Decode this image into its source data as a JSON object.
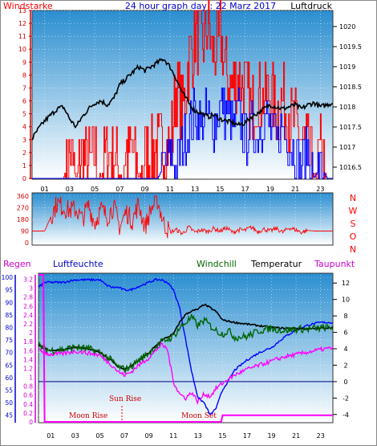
{
  "chart_data": [
    {
      "type": "line",
      "title": "24 hour graph day : 22 Marz 2017",
      "left_label": "Windstarke",
      "right_label": "Luftdruck",
      "x_ticks": [
        "01",
        "03",
        "05",
        "07",
        "09",
        "11",
        "13",
        "15",
        "17",
        "19",
        "21",
        "23"
      ],
      "y_left_ticks": [
        "0",
        "1",
        "2",
        "3",
        "4",
        "5",
        "6",
        "7",
        "8",
        "9",
        "10",
        "11",
        "12",
        "13"
      ],
      "y_left_range": [
        0,
        13
      ],
      "y_right_ticks": [
        "1016.5",
        "1017",
        "1017.5",
        "1018",
        "1018.5",
        "1019",
        "1019.5",
        "1020"
      ],
      "y_right_range": [
        1016.2,
        1020.4
      ],
      "series": [
        {
          "color": "#000000",
          "axis": "right",
          "x": [
            0,
            0.5,
            1,
            1.5,
            2,
            2.5,
            3,
            3.5,
            4,
            4.5,
            5,
            5.5,
            6,
            6.5,
            7,
            7.5,
            8,
            8.5,
            9,
            9.5,
            10,
            10.5,
            11,
            11.5,
            12,
            12.5,
            13,
            13.5,
            14,
            14.5,
            15,
            15.5,
            16,
            16.5,
            17,
            17.5,
            18,
            18.5,
            19,
            19.5,
            20,
            20.5,
            21,
            21.5,
            22,
            22.5,
            23,
            23.5,
            24
          ],
          "y": [
            1017.2,
            1017.45,
            1017.65,
            1017.8,
            1017.95,
            1018.0,
            1017.7,
            1017.5,
            1017.75,
            1017.95,
            1018.1,
            1018.15,
            1018.05,
            1018.2,
            1018.55,
            1018.7,
            1018.85,
            1019.0,
            1018.9,
            1019.0,
            1019.1,
            1019.2,
            1019.0,
            1018.7,
            1018.35,
            1018.1,
            1017.9,
            1017.85,
            1017.75,
            1017.8,
            1017.7,
            1017.65,
            1017.6,
            1017.55,
            1017.6,
            1017.75,
            1017.85,
            1017.95,
            1018.05,
            1018.0,
            1017.95,
            1018.0,
            1018.05,
            1017.95,
            1018.05,
            1018.1,
            1018.0,
            1018.05,
            1018.1
          ]
        },
        {
          "color": "#ff0000",
          "axis": "left",
          "x": [
            0,
            2.5,
            3,
            3.5,
            4,
            4.5,
            5,
            5.5,
            6,
            6.5,
            7,
            7.5,
            8,
            8.5,
            9,
            9.5,
            10,
            10.5,
            11,
            11.5,
            12,
            12.5,
            13,
            13.5,
            14,
            14.5,
            15,
            15.5,
            16,
            16.5,
            17,
            17.5,
            18,
            18.5,
            19,
            19.5,
            20,
            20.5,
            21,
            21.5,
            22,
            22.5,
            23,
            23.5,
            24
          ],
          "y": [
            0,
            0,
            2,
            0,
            2,
            1,
            2,
            0,
            2,
            2,
            0,
            2,
            2,
            0,
            2,
            2,
            2,
            3,
            2,
            7,
            5,
            9,
            11,
            10,
            12,
            9,
            11,
            8,
            7,
            8,
            7,
            5,
            7,
            6,
            7,
            5,
            6,
            5,
            4,
            3,
            2,
            0,
            2,
            0,
            0
          ]
        },
        {
          "color": "#0000ff",
          "axis": "left",
          "x": [
            0,
            10,
            10.5,
            11,
            11.5,
            12,
            12.5,
            13,
            13.5,
            14,
            14.5,
            15,
            15.5,
            16,
            16.5,
            17,
            17.5,
            18,
            18.5,
            19,
            19.5,
            20,
            20.5,
            21,
            21.5,
            22,
            22.5,
            23,
            23.5,
            24
          ],
          "y": [
            0,
            0,
            1,
            2,
            1,
            3,
            4,
            5,
            4,
            5,
            4,
            6,
            5,
            4,
            5,
            3,
            4,
            3,
            5,
            4,
            3,
            4,
            3,
            2,
            1,
            2,
            0,
            1,
            0,
            0
          ]
        }
      ]
    },
    {
      "type": "line",
      "compass_labels": [
        "N",
        "W",
        "S",
        "O",
        "N"
      ],
      "y_left_ticks": [
        "0",
        "90",
        "180",
        "270",
        "360"
      ],
      "y_left_range": [
        0,
        360
      ],
      "series": [
        {
          "color": "#ff0000",
          "x": [
            0,
            1,
            1.5,
            2,
            2.5,
            3,
            3.5,
            4,
            4.5,
            5,
            5.5,
            6,
            6.5,
            7,
            7.5,
            8,
            8.5,
            9,
            9.5,
            10,
            10.5,
            11,
            11.5,
            12,
            12.5,
            13,
            13.5,
            14,
            14.5,
            15,
            15.5,
            16,
            16.5,
            17,
            17.5,
            18,
            18.5,
            19,
            19.5,
            20,
            20.5,
            21,
            21.5,
            22,
            22.5,
            23,
            23.5,
            24
          ],
          "y": [
            90,
            90,
            200,
            310,
            270,
            250,
            260,
            180,
            290,
            150,
            260,
            200,
            280,
            120,
            240,
            170,
            300,
            120,
            260,
            330,
            150,
            80,
            100,
            70,
            120,
            80,
            100,
            85,
            110,
            90,
            115,
            80,
            100,
            95,
            120,
            85,
            105,
            90,
            110,
            80,
            115,
            100,
            80,
            95,
            90,
            90,
            90,
            90
          ]
        }
      ]
    },
    {
      "type": "line",
      "labels": {
        "regen": "Regen",
        "luftfeuchte": "Luftfeuchte",
        "windchill": "Windchill",
        "temperatur": "Temperatur",
        "taupunkt": "Taupunkt"
      },
      "annotations": {
        "moon_rise": "Moon Rise",
        "sun_rise": "Sun Rise",
        "moon_set": "Moon Set"
      },
      "x_ticks": [
        "01",
        "03",
        "05",
        "07",
        "09",
        "11",
        "13",
        "15",
        "17",
        "19",
        "21",
        "23"
      ],
      "humidity_ticks": [
        "45",
        "50",
        "55",
        "60",
        "65",
        "70",
        "75",
        "80",
        "85",
        "90",
        "95",
        "100"
      ],
      "humidity_range": [
        42,
        101
      ],
      "rain_ticks": [
        "0",
        "0.2",
        "0.4",
        "0.6",
        "0.8",
        "1",
        "1.2",
        "1.4",
        "1.6",
        "1.8",
        "2",
        "2.2",
        "2.4",
        "2.6",
        "2.8",
        "3",
        "3.2"
      ],
      "rain_range": [
        0,
        3.3
      ],
      "temp_ticks": [
        "-4",
        "-2",
        "0",
        "2",
        "4",
        "6",
        "8",
        "10",
        "12"
      ],
      "temp_range": [
        -5,
        13
      ],
      "series": [
        {
          "name": "Luftfeuchte",
          "color": "#0000ff",
          "axis": "humidity",
          "x": [
            0,
            0.5,
            1,
            2,
            3,
            4,
            5,
            5.5,
            6,
            6.5,
            7,
            7.5,
            8,
            8.5,
            9,
            9.5,
            10,
            10.5,
            11,
            11.5,
            12,
            12.5,
            13,
            13.5,
            14,
            14.5,
            15,
            16,
            17,
            18,
            19,
            20,
            21,
            22,
            23,
            24
          ],
          "y": [
            96,
            98,
            98,
            98,
            99,
            99,
            99,
            97,
            96,
            96,
            95,
            95,
            96,
            97,
            98,
            99,
            99,
            98,
            95,
            88,
            75,
            62,
            52,
            50,
            45,
            48,
            55,
            63,
            67,
            70,
            72,
            76,
            79,
            81,
            82,
            82
          ]
        },
        {
          "name": "Temperatur",
          "color": "#000000",
          "axis": "temp",
          "x": [
            0,
            0.5,
            1,
            2,
            3,
            4,
            5,
            6,
            6.5,
            7,
            7.5,
            8,
            9,
            10,
            11,
            11.5,
            12,
            12.5,
            13,
            13.5,
            14,
            14.5,
            15,
            16,
            17,
            18,
            19,
            20,
            21,
            22,
            23,
            24
          ],
          "y": [
            4.5,
            4.0,
            3.8,
            3.9,
            4.2,
            4.0,
            3.6,
            2.5,
            1.8,
            1.5,
            1.8,
            2.4,
            3.5,
            5.0,
            5.8,
            7.2,
            8.2,
            8.6,
            8.8,
            9.4,
            9.0,
            8.5,
            7.5,
            7.2,
            7.0,
            6.8,
            6.6,
            6.5,
            6.5,
            6.4,
            6.5,
            6.6
          ]
        },
        {
          "name": "Windchill",
          "color": "#006400",
          "axis": "temp",
          "x": [
            0,
            0.5,
            1,
            2,
            3,
            4,
            5,
            6,
            6.5,
            7,
            7.5,
            8,
            9,
            10,
            11,
            11.5,
            12,
            12.5,
            13,
            13.5,
            14,
            14.5,
            15,
            15.5,
            16,
            17,
            18,
            19,
            20,
            21,
            22,
            23,
            24
          ],
          "y": [
            4.5,
            4.0,
            3.8,
            3.9,
            4.2,
            4.0,
            3.6,
            2.5,
            1.8,
            1.5,
            1.8,
            2.4,
            3.5,
            4.8,
            5.5,
            6.5,
            7.2,
            7.8,
            6.8,
            7.5,
            6.8,
            6.2,
            5.8,
            6.2,
            5.4,
            5.5,
            6.2,
            6.5,
            6.2,
            6.4,
            6.4,
            6.5,
            6.6
          ]
        },
        {
          "name": "Taupunkt",
          "color": "#ff00ff",
          "axis": "temp",
          "x": [
            0,
            0.5,
            1,
            2,
            3,
            4,
            5,
            6,
            6.5,
            7,
            7.5,
            8,
            9,
            10,
            10.5,
            11,
            11.5,
            12,
            12.5,
            13,
            13.5,
            14,
            14.5,
            15,
            16,
            17,
            18,
            19,
            20,
            21,
            22,
            23,
            24
          ],
          "y": [
            3.8,
            3.5,
            3.3,
            3.4,
            3.7,
            3.5,
            3.2,
            2.0,
            1.2,
            0.8,
            1.1,
            1.8,
            2.9,
            4.5,
            4.0,
            0.0,
            -1.5,
            -2.0,
            -1.3,
            -2.5,
            -1.5,
            -1.8,
            -0.8,
            -0.2,
            0.8,
            1.5,
            2.0,
            2.5,
            3.0,
            3.3,
            3.6,
            3.9,
            4.1
          ]
        },
        {
          "name": "Regen",
          "color": "#ff00ff",
          "axis": "rain",
          "x": [
            0,
            0.4,
            0.5,
            14.9,
            15,
            24
          ],
          "y": [
            3.3,
            3.3,
            0.0,
            0.0,
            0.15,
            0.15
          ]
        }
      ]
    }
  ]
}
